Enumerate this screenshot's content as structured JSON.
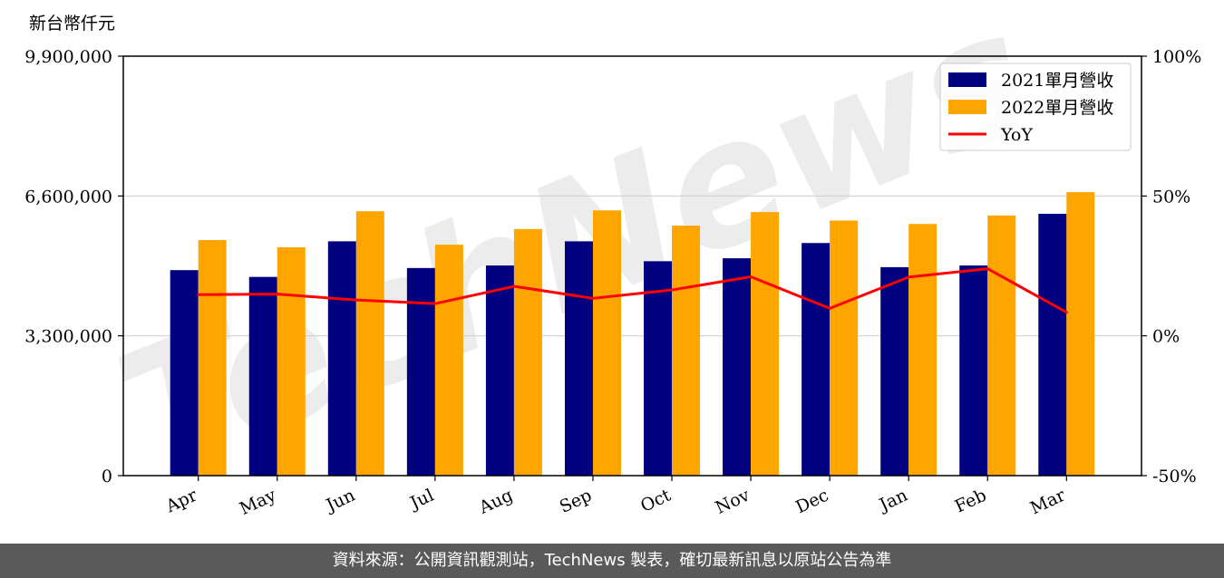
{
  "chart_data": {
    "type": "bar",
    "unit_label": "新台幣仟元",
    "categories": [
      "Apr",
      "May",
      "Jun",
      "Jul",
      "Aug",
      "Sep",
      "Oct",
      "Nov",
      "Dec",
      "Jan",
      "Feb",
      "Mar"
    ],
    "series": [
      {
        "name": "2021單月營收",
        "type": "bar",
        "axis": "left",
        "color": "#000080",
        "values": [
          4850000,
          4690000,
          5530000,
          4900000,
          4960000,
          5530000,
          5060000,
          5130000,
          5490000,
          4920000,
          4960000,
          6180000
        ]
      },
      {
        "name": "2022單月營收",
        "type": "bar",
        "axis": "left",
        "color": "#FFA500",
        "values": [
          5560000,
          5390000,
          6240000,
          5450000,
          5820000,
          6260000,
          5900000,
          6220000,
          6020000,
          5940000,
          6140000,
          6690000
        ]
      },
      {
        "name": "YoY",
        "type": "line",
        "axis": "right",
        "color": "#FF0000",
        "values": [
          14.7,
          14.9,
          12.8,
          11.5,
          17.7,
          13.4,
          16.4,
          21.1,
          9.8,
          21.0,
          24.0,
          8.4
        ]
      }
    ],
    "y_left": {
      "ylim": [
        0,
        9900000
      ],
      "ticks": [
        "0",
        "3,300,000",
        "6,600,000",
        "9,900,000"
      ]
    },
    "y_right": {
      "ylim": [
        -50,
        100
      ],
      "ticks": [
        "-50%",
        "0%",
        "50%",
        "100%"
      ]
    },
    "grid": "horizontal",
    "legend_position": "top-right"
  },
  "watermark": "TechNews",
  "footer": "資料來源：公開資訊觀測站，TechNews 製表，確切最新訊息以原站公告為準"
}
